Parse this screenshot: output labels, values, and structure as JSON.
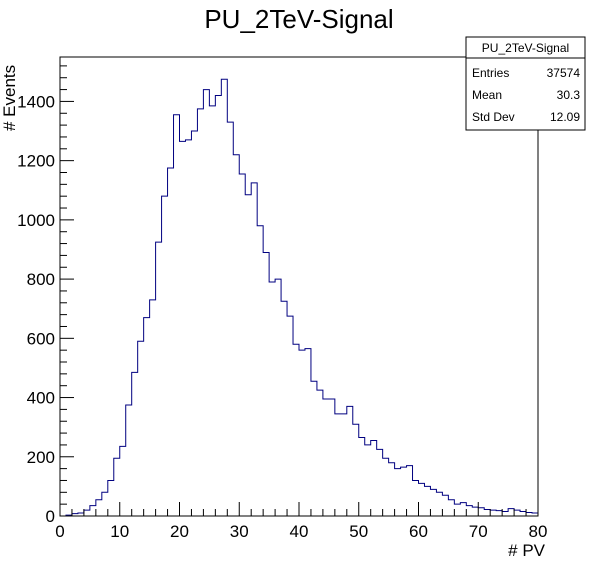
{
  "chart_data": {
    "type": "histogram",
    "title": "PU_2TeV-Signal",
    "xlabel": "# PV",
    "ylabel": "# Events",
    "xlim": [
      0,
      80
    ],
    "ylim": [
      0,
      1550
    ],
    "x_ticks": [
      0,
      10,
      20,
      30,
      40,
      50,
      60,
      70,
      80
    ],
    "y_ticks": [
      0,
      200,
      400,
      600,
      800,
      1000,
      1200,
      1400
    ],
    "bin_width": 1,
    "values": [
      0,
      3,
      8,
      10,
      20,
      35,
      55,
      80,
      120,
      195,
      235,
      375,
      485,
      590,
      670,
      730,
      925,
      1080,
      1175,
      1355,
      1265,
      1270,
      1300,
      1375,
      1440,
      1385,
      1420,
      1475,
      1330,
      1220,
      1155,
      1085,
      1125,
      980,
      890,
      790,
      800,
      725,
      675,
      580,
      560,
      565,
      455,
      425,
      395,
      395,
      345,
      345,
      370,
      310,
      265,
      240,
      255,
      225,
      195,
      180,
      160,
      165,
      170,
      120,
      110,
      100,
      90,
      80,
      70,
      55,
      40,
      45,
      35,
      30,
      28,
      22,
      20,
      18,
      15,
      25,
      20,
      15,
      12,
      10
    ],
    "line_color": "#000080",
    "grid": false,
    "legend": "none"
  },
  "stats_box": {
    "title": "PU_2TeV-Signal",
    "rows": [
      {
        "label": "Entries",
        "value": "37574"
      },
      {
        "label": "Mean",
        "value": "30.3"
      },
      {
        "label": "Std Dev",
        "value": "12.09"
      }
    ]
  }
}
